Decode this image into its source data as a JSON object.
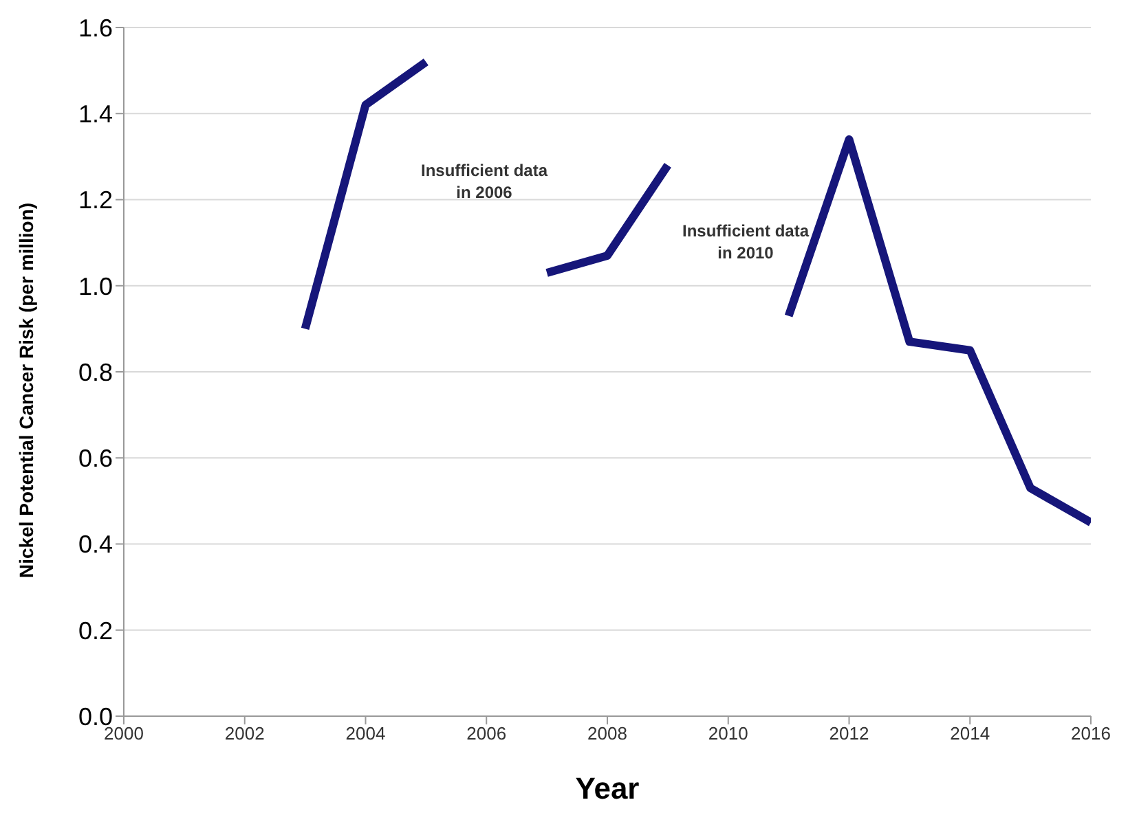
{
  "chart_data": {
    "type": "line",
    "xlabel": "Year",
    "ylabel": "Nickel Potential Cancer Risk (per million)",
    "x": [
      2003,
      2004,
      2005,
      2006,
      2007,
      2008,
      2009,
      2010,
      2011,
      2012,
      2013,
      2014,
      2015,
      2016
    ],
    "series": [
      {
        "color": "#16167a",
        "values": [
          0.9,
          1.42,
          1.52,
          null,
          1.03,
          1.07,
          1.28,
          null,
          0.93,
          1.34,
          0.87,
          0.85,
          0.53,
          0.45
        ]
      }
    ],
    "xlim": [
      2000,
      2016
    ],
    "xticks": [
      2000,
      2002,
      2004,
      2006,
      2008,
      2010,
      2012,
      2014,
      2016
    ],
    "ylim": [
      0,
      1.6
    ],
    "yticks": [
      {
        "value": 0,
        "label": "0.0"
      },
      0.2,
      0.4,
      0.6,
      0.8,
      {
        "value": 1,
        "label": "1.0"
      },
      1.2,
      1.4,
      1.6
    ],
    "grid": "y",
    "marker": "none",
    "line_style": "solid",
    "legend": false,
    "annotations": [
      "Insufficient data in 2006",
      "Insufficient data in 2010"
    ]
  }
}
